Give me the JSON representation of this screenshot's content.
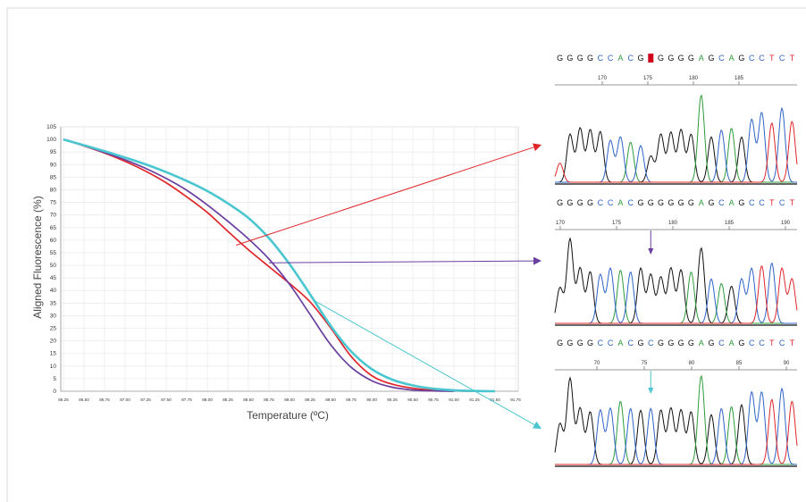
{
  "colors": {
    "frame": "#d9d9d9",
    "grid": "#ebebeb",
    "axis": "#555555",
    "red": "#e0262a",
    "purple": "#6a3fa0",
    "cyan": "#49c6cf",
    "base_A": "#2e9b3a",
    "base_C": "#2f63c7",
    "base_G": "#111111",
    "base_T": "#e0262a",
    "mutation_highlight": "#d0021b"
  },
  "chart_data": [
    {
      "type": "line",
      "title": "",
      "xlabel": "Temperature (ºC)",
      "ylabel": "Aligned Fluorescence (%)",
      "xlim": [
        86.25,
        91.75
      ],
      "ylim": [
        0,
        105
      ],
      "xticks": [
        "86.25",
        "86.50",
        "86.75",
        "87.00",
        "87.25",
        "87.50",
        "87.75",
        "88.00",
        "88.25",
        "88.50",
        "88.75",
        "89.00",
        "89.25",
        "89.50",
        "89.75",
        "90.00",
        "90.25",
        "90.50",
        "90.75",
        "91.00",
        "91.25",
        "91.50",
        "91.75"
      ],
      "yticks": [
        "0",
        "5",
        "10",
        "15",
        "20",
        "25",
        "30",
        "35",
        "40",
        "45",
        "50",
        "55",
        "60",
        "65",
        "70",
        "75",
        "80",
        "85",
        "90",
        "95",
        "100",
        "105"
      ],
      "grid": true,
      "series": [
        {
          "color_key": "red",
          "points": [
            [
              86.25,
              100
            ],
            [
              86.5,
              97.4
            ],
            [
              86.75,
              94.6
            ],
            [
              87.0,
              91.3
            ],
            [
              87.25,
              87.4
            ],
            [
              87.5,
              82.8
            ],
            [
              87.75,
              77.2
            ],
            [
              88.0,
              71.0
            ],
            [
              88.25,
              63.5
            ],
            [
              88.5,
              56.2
            ],
            [
              88.75,
              49.5
            ],
            [
              89.0,
              42.8
            ],
            [
              89.25,
              35.5
            ],
            [
              89.5,
              25.2
            ],
            [
              89.75,
              13.8
            ],
            [
              90.0,
              6.2
            ],
            [
              90.25,
              2.8
            ],
            [
              90.5,
              1.2
            ],
            [
              90.75,
              0.4
            ],
            [
              91.0,
              0.1
            ],
            [
              91.25,
              0
            ]
          ]
        },
        {
          "color_key": "purple",
          "points": [
            [
              86.25,
              100
            ],
            [
              86.5,
              97.5
            ],
            [
              86.75,
              94.8
            ],
            [
              87.0,
              91.9
            ],
            [
              87.25,
              88.5
            ],
            [
              87.5,
              84.5
            ],
            [
              87.75,
              79.8
            ],
            [
              88.0,
              74.0
            ],
            [
              88.25,
              67.5
            ],
            [
              88.5,
              60.5
            ],
            [
              88.75,
              52.5
            ],
            [
              89.0,
              42.5
            ],
            [
              89.25,
              30.5
            ],
            [
              89.5,
              18.5
            ],
            [
              89.75,
              9.5
            ],
            [
              90.0,
              4.2
            ],
            [
              90.25,
              1.6
            ],
            [
              90.5,
              0.5
            ],
            [
              90.75,
              0.1
            ],
            [
              91.0,
              0
            ]
          ]
        },
        {
          "color_key": "cyan",
          "points": [
            [
              86.25,
              100
            ],
            [
              86.5,
              97.7
            ],
            [
              86.75,
              95.3
            ],
            [
              87.0,
              92.8
            ],
            [
              87.25,
              90.1
            ],
            [
              87.5,
              87.0
            ],
            [
              87.75,
              83.5
            ],
            [
              88.0,
              79.5
            ],
            [
              88.25,
              74.6
            ],
            [
              88.5,
              68.8
            ],
            [
              88.75,
              60.8
            ],
            [
              89.0,
              50.5
            ],
            [
              89.25,
              38.5
            ],
            [
              89.5,
              26.0
            ],
            [
              89.75,
              15.8
            ],
            [
              90.0,
              8.8
            ],
            [
              90.25,
              4.6
            ],
            [
              90.5,
              2.3
            ],
            [
              90.75,
              1.0
            ],
            [
              91.0,
              0.4
            ],
            [
              91.25,
              0.1
            ],
            [
              91.5,
              0
            ]
          ]
        }
      ]
    },
    {
      "type": "line",
      "sequence": [
        "G",
        "G",
        "G",
        "G",
        "C",
        "C",
        "A",
        "C",
        "G",
        "",
        "G",
        "G",
        "G",
        "G",
        "A",
        "G",
        "C",
        "A",
        "G",
        "C",
        "C",
        "T",
        "C",
        "T"
      ],
      "highlight_index": 9,
      "ruler": [
        "170",
        "175",
        "180",
        "185"
      ],
      "peaks": [
        {
          "base": "T",
          "h": 0.22
        },
        {
          "base": "G",
          "h": 0.55
        },
        {
          "base": "G",
          "h": 0.62
        },
        {
          "base": "G",
          "h": 0.6
        },
        {
          "base": "G",
          "h": 0.58
        },
        {
          "base": "C",
          "h": 0.48
        },
        {
          "base": "C",
          "h": 0.52
        },
        {
          "base": "A",
          "h": 0.46
        },
        {
          "base": "C",
          "h": 0.42
        },
        {
          "base": "G",
          "h": 0.3
        },
        {
          "base": "G",
          "h": 0.55
        },
        {
          "base": "G",
          "h": 0.57
        },
        {
          "base": "G",
          "h": 0.6
        },
        {
          "base": "G",
          "h": 0.55
        },
        {
          "base": "A",
          "h": 1.0
        },
        {
          "base": "G",
          "h": 0.52
        },
        {
          "base": "C",
          "h": 0.6
        },
        {
          "base": "A",
          "h": 0.62
        },
        {
          "base": "G",
          "h": 0.52
        },
        {
          "base": "C",
          "h": 0.72
        },
        {
          "base": "C",
          "h": 0.8
        },
        {
          "base": "T",
          "h": 0.68
        },
        {
          "base": "C",
          "h": 0.85
        },
        {
          "base": "T",
          "h": 0.7
        }
      ]
    },
    {
      "type": "line",
      "sequence": [
        "G",
        "G",
        "G",
        "G",
        "C",
        "C",
        "A",
        "C",
        "G",
        "G",
        "G",
        "G",
        "G",
        "G",
        "A",
        "G",
        "C",
        "A",
        "G",
        "C",
        "C",
        "T",
        "C",
        "T"
      ],
      "highlight_index": 9,
      "ruler": [
        "170",
        "175",
        "180",
        "185",
        "190"
      ],
      "peaks": [
        {
          "base": "G",
          "h": 0.4
        },
        {
          "base": "G",
          "h": 0.95
        },
        {
          "base": "G",
          "h": 0.62
        },
        {
          "base": "G",
          "h": 0.58
        },
        {
          "base": "C",
          "h": 0.55
        },
        {
          "base": "C",
          "h": 0.62
        },
        {
          "base": "A",
          "h": 0.6
        },
        {
          "base": "C",
          "h": 0.58
        },
        {
          "base": "G",
          "h": 0.62
        },
        {
          "base": "G",
          "h": 0.55
        },
        {
          "base": "G",
          "h": 0.52
        },
        {
          "base": "G",
          "h": 0.62
        },
        {
          "base": "G",
          "h": 0.6
        },
        {
          "base": "A",
          "h": 0.58
        },
        {
          "base": "G",
          "h": 0.85
        },
        {
          "base": "C",
          "h": 0.5
        },
        {
          "base": "A",
          "h": 0.45
        },
        {
          "base": "G",
          "h": 0.42
        },
        {
          "base": "C",
          "h": 0.5
        },
        {
          "base": "C",
          "h": 0.62
        },
        {
          "base": "T",
          "h": 0.65
        },
        {
          "base": "C",
          "h": 0.68
        },
        {
          "base": "T",
          "h": 0.62
        },
        {
          "base": "T",
          "h": 0.5
        }
      ]
    },
    {
      "type": "line",
      "sequence": [
        "G",
        "G",
        "G",
        "G",
        "C",
        "C",
        "A",
        "C",
        "G",
        "C",
        "G",
        "G",
        "G",
        "G",
        "A",
        "G",
        "C",
        "A",
        "G",
        "C",
        "C",
        "T",
        "C",
        "T"
      ],
      "highlight_index": 9,
      "ruler": [
        "70",
        "75",
        "80",
        "85",
        "90"
      ],
      "peaks": [
        {
          "base": "G",
          "h": 0.45
        },
        {
          "base": "G",
          "h": 0.95
        },
        {
          "base": "G",
          "h": 0.62
        },
        {
          "base": "G",
          "h": 0.58
        },
        {
          "base": "C",
          "h": 0.6
        },
        {
          "base": "C",
          "h": 0.62
        },
        {
          "base": "A",
          "h": 0.7
        },
        {
          "base": "C",
          "h": 0.62
        },
        {
          "base": "G",
          "h": 0.6
        },
        {
          "base": "C",
          "h": 0.62
        },
        {
          "base": "G",
          "h": 0.6
        },
        {
          "base": "G",
          "h": 0.62
        },
        {
          "base": "G",
          "h": 0.6
        },
        {
          "base": "G",
          "h": 0.58
        },
        {
          "base": "A",
          "h": 0.98
        },
        {
          "base": "G",
          "h": 0.55
        },
        {
          "base": "C",
          "h": 0.62
        },
        {
          "base": "A",
          "h": 0.64
        },
        {
          "base": "G",
          "h": 0.66
        },
        {
          "base": "C",
          "h": 0.8
        },
        {
          "base": "C",
          "h": 0.8
        },
        {
          "base": "T",
          "h": 0.72
        },
        {
          "base": "C",
          "h": 0.84
        },
        {
          "base": "T",
          "h": 0.7
        }
      ]
    }
  ],
  "arrows": [
    {
      "color_key": "red",
      "from": [
        88.35,
        58
      ]
    },
    {
      "color_key": "purple",
      "from": [
        88.75,
        51
      ]
    },
    {
      "color_key": "cyan",
      "from": [
        89.3,
        36
      ]
    }
  ]
}
